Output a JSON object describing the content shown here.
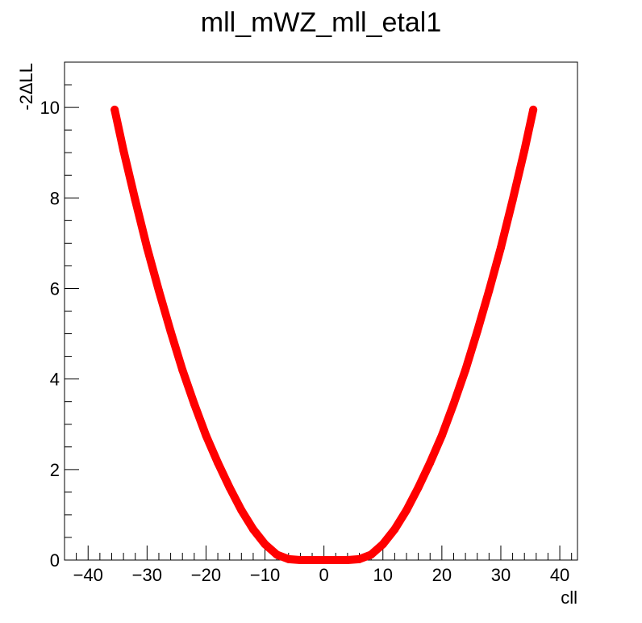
{
  "chart_data": {
    "type": "scatter",
    "title": "mll_mWZ_mll_etal1",
    "xlabel": "cll",
    "ylabel": "-2ΔLL",
    "xlim": [
      -44,
      43
    ],
    "ylim": [
      0,
      11
    ],
    "grid": false,
    "marker_color": "#ff0000",
    "axis_color": "#000000",
    "background": "#ffffff",
    "x_ticks": [
      -40,
      -30,
      -20,
      -10,
      0,
      10,
      20,
      30,
      40
    ],
    "x_tick_labels": [
      "−40",
      "−30",
      "−20",
      "−10",
      "0",
      "10",
      "20",
      "30",
      "40"
    ],
    "y_ticks": [
      0,
      2,
      4,
      6,
      8,
      10
    ],
    "y_tick_labels": [
      "0",
      "2",
      "4",
      "6",
      "8",
      "10"
    ],
    "series": [
      {
        "name": "mll_mWZ_mll_etal1",
        "color": "#ff0000",
        "x": [
          -35.5,
          -34,
          -32,
          -30,
          -28,
          -26,
          -24,
          -22,
          -20,
          -18,
          -16,
          -14,
          -12,
          -10,
          -8,
          -6,
          -4,
          -2,
          0,
          2,
          4,
          6,
          8,
          10,
          12,
          14,
          16,
          18,
          20,
          22,
          24,
          26,
          28,
          30,
          32,
          34,
          35.5
        ],
        "y": [
          9.95,
          9.05,
          7.95,
          6.9,
          5.95,
          5.05,
          4.2,
          3.45,
          2.75,
          2.15,
          1.6,
          1.1,
          0.68,
          0.35,
          0.12,
          0.02,
          0.0,
          0.0,
          0.0,
          0.0,
          0.0,
          0.02,
          0.12,
          0.35,
          0.68,
          1.1,
          1.6,
          2.15,
          2.75,
          3.45,
          4.2,
          5.05,
          5.95,
          6.9,
          7.95,
          9.05,
          9.95
        ]
      }
    ]
  }
}
